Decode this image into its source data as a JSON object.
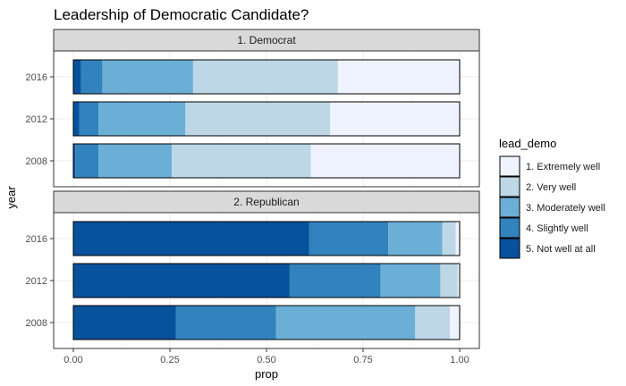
{
  "chart_data": {
    "type": "bar",
    "orientation": "horizontal",
    "stacked": true,
    "title": "Leadership of Democratic Candidate?",
    "xlabel": "prop",
    "ylabel": "year",
    "xlim": [
      0,
      1
    ],
    "x_ticks": [
      "0.00",
      "0.25",
      "0.50",
      "0.75",
      "1.00"
    ],
    "x_tick_values": [
      0,
      0.25,
      0.5,
      0.75,
      1
    ],
    "grid": true,
    "legend_position": "right",
    "legend_title": "lead_demo",
    "legend": [
      {
        "label": "1. Extremely well",
        "color": "#eff3ff"
      },
      {
        "label": "2. Very well",
        "color": "#bdd7e7"
      },
      {
        "label": "3. Moderately well",
        "color": "#6baed6"
      },
      {
        "label": "4. Slightly well",
        "color": "#3182bd"
      },
      {
        "label": "5. Not well at all",
        "color": "#08519c"
      }
    ],
    "stack_order": [
      "5. Not well at all",
      "4. Slightly well",
      "3. Moderately well",
      "2. Very well",
      "1. Extremely well"
    ],
    "panels": [
      {
        "label": "1. Democrat",
        "categories": [
          "2016",
          "2012",
          "2008"
        ],
        "series": [
          {
            "name": "5. Not well at all",
            "values": [
              0.02,
              0.015,
              0.005
            ]
          },
          {
            "name": "4. Slightly well",
            "values": [
              0.055,
              0.05,
              0.06
            ]
          },
          {
            "name": "3. Moderately well",
            "values": [
              0.235,
              0.225,
              0.19
            ]
          },
          {
            "name": "2. Very well",
            "values": [
              0.375,
              0.375,
              0.36
            ]
          },
          {
            "name": "1. Extremely well",
            "values": [
              0.315,
              0.335,
              0.385
            ]
          }
        ]
      },
      {
        "label": "2. Republican",
        "categories": [
          "2016",
          "2012",
          "2008"
        ],
        "series": [
          {
            "name": "5. Not well at all",
            "values": [
              0.61,
              0.56,
              0.265
            ]
          },
          {
            "name": "4. Slightly well",
            "values": [
              0.205,
              0.235,
              0.26
            ]
          },
          {
            "name": "3. Moderately well",
            "values": [
              0.14,
              0.155,
              0.36
            ]
          },
          {
            "name": "2. Very well",
            "values": [
              0.035,
              0.045,
              0.09
            ]
          },
          {
            "name": "1. Extremely well",
            "values": [
              0.01,
              0.005,
              0.025
            ]
          }
        ]
      }
    ]
  }
}
